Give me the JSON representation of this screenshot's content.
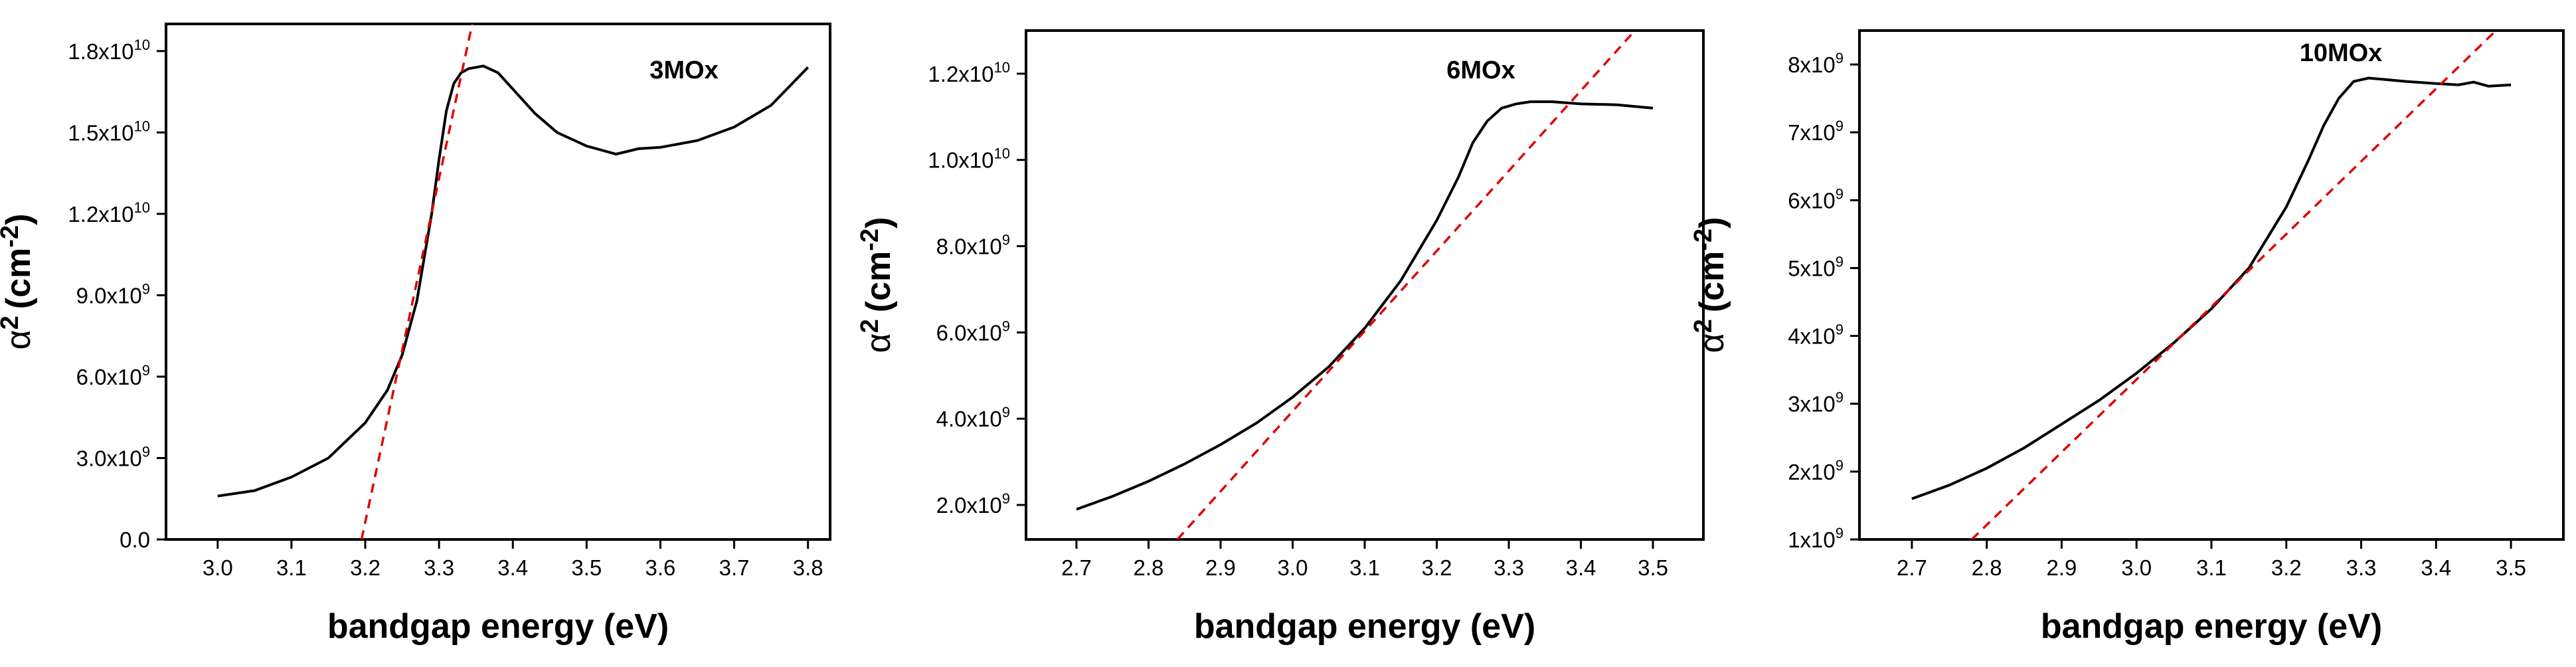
{
  "chart_data": [
    {
      "type": "line",
      "panel_label": "3MOx",
      "xlabel": "bandgap energy (eV)",
      "ylabel": "α² (cm⁻²)",
      "ylabel_parts": {
        "symbol": "α",
        "power": "2",
        "unit_open": "(cm",
        "unit_power": "-2",
        "unit_close": ")"
      },
      "xlim": [
        2.93,
        3.83
      ],
      "ylim": [
        0,
        19000000000.0
      ],
      "xticks": [
        3.0,
        3.1,
        3.2,
        3.3,
        3.4,
        3.5,
        3.6,
        3.7,
        3.8
      ],
      "xtick_labels": [
        "3.0",
        "3.1",
        "3.2",
        "3.3",
        "3.4",
        "3.5",
        "3.6",
        "3.7",
        "3.8"
      ],
      "yticks": [
        0,
        3000000000.0,
        6000000000.0,
        9000000000.0,
        12000000000.0,
        15000000000.0,
        18000000000.0
      ],
      "ytick_labels": [
        {
          "mantissa": "0.0",
          "exponent": ""
        },
        {
          "mantissa": "3.0x10",
          "exponent": "9"
        },
        {
          "mantissa": "6.0x10",
          "exponent": "9"
        },
        {
          "mantissa": "9.0x10",
          "exponent": "9"
        },
        {
          "mantissa": "1.2x10",
          "exponent": "10"
        },
        {
          "mantissa": "1.5x10",
          "exponent": "10"
        },
        {
          "mantissa": "1.8x10",
          "exponent": "10"
        }
      ],
      "series": [
        {
          "name": "absorption",
          "style": "solid",
          "x": [
            3.0,
            3.05,
            3.1,
            3.15,
            3.2,
            3.23,
            3.25,
            3.27,
            3.29,
            3.3,
            3.31,
            3.32,
            3.33,
            3.34,
            3.36,
            3.38,
            3.4,
            3.43,
            3.46,
            3.5,
            3.54,
            3.57,
            3.6,
            3.65,
            3.7,
            3.75,
            3.8
          ],
          "y": [
            1600000000.0,
            1800000000.0,
            2300000000.0,
            3000000000.0,
            4300000000.0,
            5500000000.0,
            6800000000.0,
            8800000000.0,
            12000000000.0,
            14000000000.0,
            15800000000.0,
            16800000000.0,
            17200000000.0,
            17350000000.0,
            17450000000.0,
            17200000000.0,
            16600000000.0,
            15700000000.0,
            15000000000.0,
            14500000000.0,
            14200000000.0,
            14400000000.0,
            14450000000.0,
            14700000000.0,
            15200000000.0,
            16000000000.0,
            17400000000.0
          ]
        },
        {
          "name": "linear fit",
          "style": "dashed",
          "x": [
            3.195,
            3.345
          ],
          "y": [
            0,
            19000000000.0
          ]
        }
      ]
    },
    {
      "type": "line",
      "panel_label": "6MOx",
      "xlabel": "bandgap energy (eV)",
      "ylabel": "α² (cm⁻²)",
      "ylabel_parts": {
        "symbol": "α",
        "power": "2",
        "unit_open": "(cm",
        "unit_power": "-2",
        "unit_close": ")"
      },
      "xlim": [
        2.63,
        3.57
      ],
      "ylim": [
        1200000000.0,
        13000000000.0
      ],
      "xticks": [
        2.7,
        2.8,
        2.9,
        3.0,
        3.1,
        3.2,
        3.3,
        3.4,
        3.5
      ],
      "xtick_labels": [
        "2.7",
        "2.8",
        "2.9",
        "3.0",
        "3.1",
        "3.2",
        "3.3",
        "3.4",
        "3.5"
      ],
      "yticks": [
        2000000000.0,
        4000000000.0,
        6000000000.0,
        8000000000.0,
        10000000000.0,
        12000000000.0
      ],
      "ytick_labels": [
        {
          "mantissa": "2.0x10",
          "exponent": "9"
        },
        {
          "mantissa": "4.0x10",
          "exponent": "9"
        },
        {
          "mantissa": "6.0x10",
          "exponent": "9"
        },
        {
          "mantissa": "8.0x10",
          "exponent": "9"
        },
        {
          "mantissa": "1.0x10",
          "exponent": "10"
        },
        {
          "mantissa": "1.2x10",
          "exponent": "10"
        }
      ],
      "series": [
        {
          "name": "absorption",
          "style": "solid",
          "x": [
            2.7,
            2.75,
            2.8,
            2.85,
            2.9,
            2.95,
            3.0,
            3.05,
            3.1,
            3.15,
            3.2,
            3.23,
            3.25,
            3.27,
            3.29,
            3.31,
            3.33,
            3.36,
            3.4,
            3.45,
            3.5
          ],
          "y": [
            1900000000.0,
            2200000000.0,
            2550000000.0,
            2950000000.0,
            3400000000.0,
            3900000000.0,
            4500000000.0,
            5200000000.0,
            6100000000.0,
            7200000000.0,
            8600000000.0,
            9600000000.0,
            10400000000.0,
            10900000000.0,
            11200000000.0,
            11300000000.0,
            11350000000.0,
            11350000000.0,
            11300000000.0,
            11280000000.0,
            11200000000.0
          ]
        },
        {
          "name": "linear fit",
          "style": "dashed",
          "x": [
            2.84,
            3.475
          ],
          "y": [
            1200000000.0,
            13000000000.0
          ]
        }
      ]
    },
    {
      "type": "line",
      "panel_label": "10MOx",
      "xlabel": "bandgap energy (eV)",
      "ylabel": "α² (cm⁻²)",
      "ylabel_parts": {
        "symbol": "α",
        "power": "2",
        "unit_open": "(cm",
        "unit_power": "-2",
        "unit_close": ")"
      },
      "xlim": [
        2.63,
        3.57
      ],
      "ylim": [
        1000000000.0,
        8500000000.0
      ],
      "xticks": [
        2.7,
        2.8,
        2.9,
        3.0,
        3.1,
        3.2,
        3.3,
        3.4,
        3.5
      ],
      "xtick_labels": [
        "2.7",
        "2.8",
        "2.9",
        "3.0",
        "3.1",
        "3.2",
        "3.3",
        "3.4",
        "3.5"
      ],
      "yticks": [
        1000000000.0,
        2000000000.0,
        3000000000.0,
        4000000000.0,
        5000000000.0,
        6000000000.0,
        7000000000.0,
        8000000000.0
      ],
      "ytick_labels": [
        {
          "mantissa": "1x10",
          "exponent": "9"
        },
        {
          "mantissa": "2x10",
          "exponent": "9"
        },
        {
          "mantissa": "3x10",
          "exponent": "9"
        },
        {
          "mantissa": "4x10",
          "exponent": "9"
        },
        {
          "mantissa": "5x10",
          "exponent": "9"
        },
        {
          "mantissa": "6x10",
          "exponent": "9"
        },
        {
          "mantissa": "7x10",
          "exponent": "9"
        },
        {
          "mantissa": "8x10",
          "exponent": "9"
        }
      ],
      "series": [
        {
          "name": "absorption",
          "style": "solid",
          "x": [
            2.7,
            2.75,
            2.8,
            2.85,
            2.9,
            2.95,
            3.0,
            3.05,
            3.1,
            3.15,
            3.2,
            3.23,
            3.25,
            3.27,
            3.29,
            3.31,
            3.33,
            3.36,
            3.4,
            3.43,
            3.45,
            3.47,
            3.5
          ],
          "y": [
            1600000000.0,
            1800000000.0,
            2050000000.0,
            2350000000.0,
            2700000000.0,
            3050000000.0,
            3450000000.0,
            3900000000.0,
            4400000000.0,
            5000000000.0,
            5900000000.0,
            6600000000.0,
            7100000000.0,
            7500000000.0,
            7750000000.0,
            7800000000.0,
            7780000000.0,
            7750000000.0,
            7720000000.0,
            7700000000.0,
            7740000000.0,
            7680000000.0,
            7700000000.0
          ]
        },
        {
          "name": "linear fit",
          "style": "dashed",
          "x": [
            2.78,
            3.48
          ],
          "y": [
            1000000000.0,
            8500000000.0
          ]
        }
      ]
    }
  ]
}
